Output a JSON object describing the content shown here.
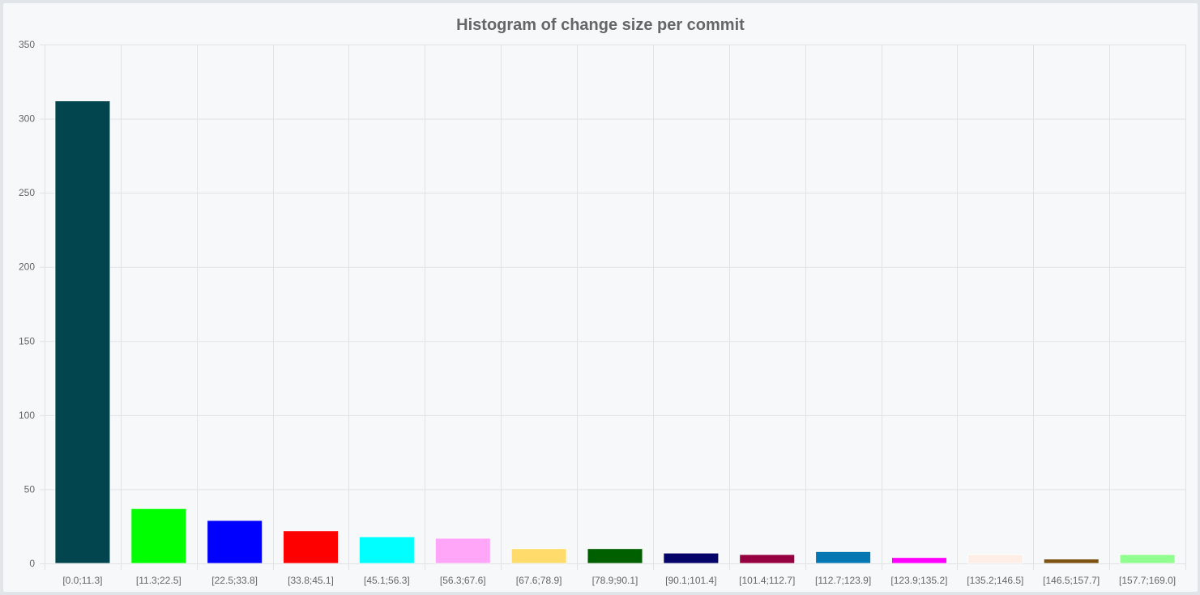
{
  "chart_data": {
    "type": "bar",
    "title": "Histogram of change size per commit",
    "xlabel": "",
    "ylabel": "",
    "ylim": [
      0,
      350
    ],
    "yticks": [
      "0",
      "50",
      "100",
      "150",
      "200",
      "250",
      "300",
      "350"
    ],
    "grid": true,
    "legend": "none",
    "categories": [
      "[0.0;11.3]",
      "[11.3;22.5]",
      "[22.5;33.8]",
      "[33.8;45.1]",
      "[45.1;56.3]",
      "[56.3;67.6]",
      "[67.6;78.9]",
      "[78.9;90.1]",
      "[90.1;101.4]",
      "[101.4;112.7]",
      "[112.7;123.9]",
      "[123.9;135.2]",
      "[135.2;146.5]",
      "[146.5;157.7]",
      "[157.7;169.0]"
    ],
    "values": [
      312,
      37,
      29,
      22,
      18,
      17,
      10,
      10,
      7,
      6,
      8,
      4,
      6,
      3,
      6
    ],
    "colors": [
      "#02454f",
      "#00ff00",
      "#0000ff",
      "#ff0000",
      "#00ffff",
      "#ffa6f8",
      "#ffdb6b",
      "#006000",
      "#050569",
      "#970040",
      "#0578b4",
      "#ff00ff",
      "#feeee6",
      "#7d5314",
      "#91ff8f"
    ]
  }
}
